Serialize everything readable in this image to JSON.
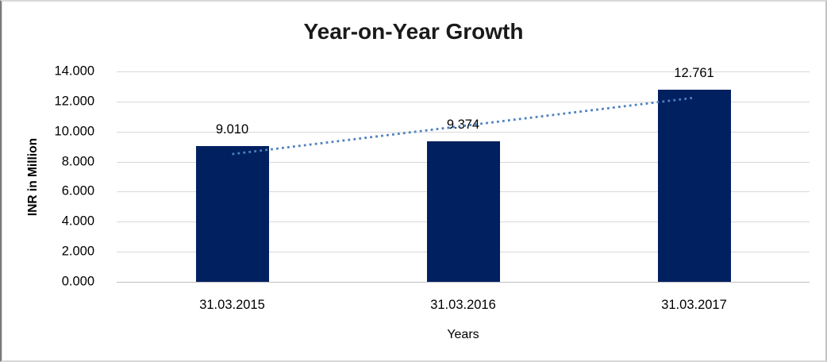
{
  "chart_data": {
    "type": "bar",
    "title": "Year-on-Year Growth",
    "xlabel": "Years",
    "ylabel": "INR in Million",
    "categories": [
      "31.03.2015",
      "31.03.2016",
      "31.03.2017"
    ],
    "values": [
      9.01,
      9.374,
      12.761
    ],
    "value_labels": [
      "9.010",
      "9.374",
      "12.761"
    ],
    "ylim": [
      0,
      14
    ],
    "ytick_step": 2,
    "ytick_labels": [
      "0.000",
      "2.000",
      "4.000",
      "6.000",
      "8.000",
      "10.000",
      "12.000",
      "14.000"
    ],
    "grid": true,
    "legend": "none",
    "bar_color": "#002060",
    "gridline_color": "#d9d9d9",
    "axis_line_color": "#bfbfbf",
    "trendline": {
      "style": "dotted",
      "color": "#4f81bd",
      "start_value": 8.5,
      "end_value": 12.25
    }
  }
}
